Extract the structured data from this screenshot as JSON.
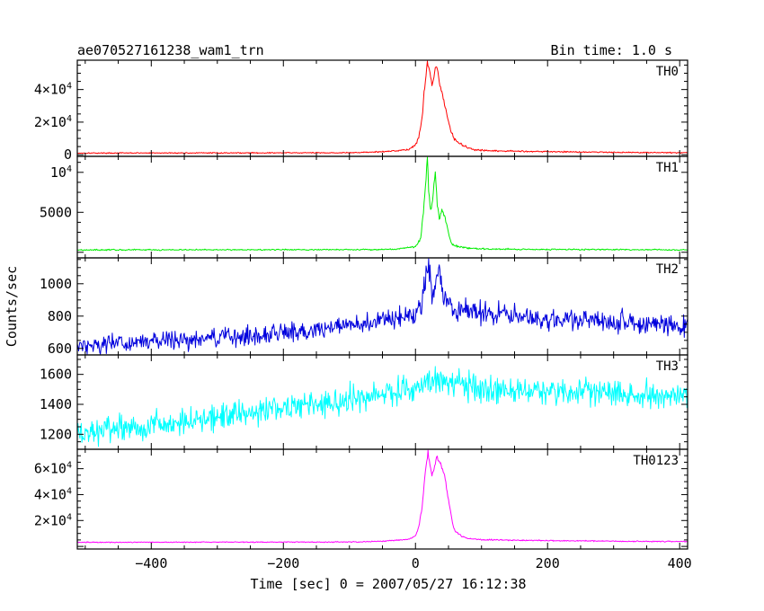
{
  "header": {
    "title": "ae070527161238_wam1_trn",
    "bin_time": "Bin time: 1.0 s"
  },
  "axes": {
    "xlabel": "Time [sec] 0 = 2007/05/27 16:12:38",
    "ylabel": "Counts/sec"
  },
  "chart_data": {
    "type": "line",
    "title": "ae070527161238_wam1_trn",
    "subtitle": "Bin time: 1.0 s",
    "xlabel": "Time [sec] 0 = 2007/05/27 16:12:38",
    "ylabel": "Counts/sec",
    "xlim": [
      -512,
      412
    ],
    "x_ticks": [
      -400,
      -200,
      0,
      200,
      400
    ],
    "x_tick_labels": [
      "−400",
      "−200",
      "0",
      "200",
      "400"
    ],
    "grid": false,
    "legend": "none",
    "panels": [
      {
        "label": "TH0",
        "color": "#ff0000",
        "ylim": [
          -1000,
          58000
        ],
        "yticks": [
          0,
          20000,
          40000
        ],
        "ytick_labels": [
          "0",
          "2×10^4",
          "4×10^4"
        ],
        "baseline": 1000,
        "noise": 150,
        "x": [
          -512,
          -100,
          -50,
          -10,
          0,
          5,
          10,
          12,
          15,
          18,
          22,
          25,
          28,
          30,
          33,
          36,
          40,
          45,
          50,
          55,
          60,
          70,
          80,
          90,
          100,
          120,
          150,
          200,
          300,
          412
        ],
        "values": [
          1000,
          1200,
          1800,
          3200,
          6000,
          11000,
          22000,
          33000,
          46000,
          58000,
          50000,
          43000,
          47000,
          54000,
          53000,
          45000,
          38000,
          29000,
          20000,
          13000,
          9000,
          6000,
          4200,
          3000,
          2600,
          2300,
          2200,
          1900,
          1500,
          1200
        ]
      },
      {
        "label": "TH1",
        "color": "#00ee00",
        "ylim": [
          -700,
          12000
        ],
        "yticks": [
          5000,
          10000
        ],
        "ytick_labels": [
          "5000",
          "10^4"
        ],
        "baseline": 300,
        "noise": 40,
        "x": [
          -512,
          -100,
          -30,
          0,
          8,
          12,
          16,
          18,
          20,
          23,
          26,
          30,
          33,
          36,
          40,
          45,
          50,
          55,
          65,
          80,
          100,
          150,
          412
        ],
        "values": [
          300,
          330,
          380,
          700,
          1800,
          5000,
          9000,
          12000,
          8000,
          5000,
          6500,
          10000,
          6000,
          4200,
          5500,
          4300,
          2300,
          1000,
          700,
          500,
          430,
          380,
          300
        ]
      },
      {
        "label": "TH2",
        "color": "#0000dd",
        "ylim": [
          560,
          1160
        ],
        "yticks": [
          600,
          800,
          1000
        ],
        "ytick_labels": [
          "600",
          "800",
          "1000"
        ],
        "baseline": 620,
        "noise": 28,
        "x": [
          -512,
          -400,
          -300,
          -200,
          -100,
          -50,
          0,
          10,
          15,
          20,
          25,
          30,
          35,
          40,
          50,
          60,
          80,
          100,
          150,
          200,
          300,
          400,
          412
        ],
        "values": [
          620,
          640,
          665,
          700,
          740,
          770,
          810,
          880,
          1000,
          1160,
          900,
          1000,
          1100,
          960,
          880,
          850,
          840,
          820,
          800,
          780,
          770,
          740,
          740
        ]
      },
      {
        "label": "TH3",
        "color": "#00ffff",
        "ylim": [
          1100,
          1730
        ],
        "yticks": [
          1200,
          1400,
          1600
        ],
        "ytick_labels": [
          "1200",
          "1400",
          "1600"
        ],
        "baseline": 1200,
        "noise": 42,
        "x": [
          -512,
          -400,
          -300,
          -200,
          -100,
          -50,
          0,
          20,
          40,
          60,
          80,
          100,
          150,
          200,
          250,
          300,
          350,
          400,
          412
        ],
        "values": [
          1200,
          1260,
          1320,
          1380,
          1430,
          1460,
          1520,
          1570,
          1560,
          1540,
          1520,
          1505,
          1500,
          1490,
          1480,
          1475,
          1470,
          1460,
          1450
        ]
      },
      {
        "label": "TH0123",
        "color": "#ff00ff",
        "ylim": [
          -2000,
          75000
        ],
        "yticks": [
          20000,
          40000,
          60000
        ],
        "ytick_labels": [
          "2×10^4",
          "4×10^4",
          "6×10^4"
        ],
        "baseline": 3200,
        "noise": 180,
        "x": [
          -512,
          -100,
          -50,
          -10,
          0,
          5,
          10,
          13,
          16,
          19,
          22,
          25,
          28,
          32,
          35,
          38,
          42,
          45,
          48,
          52,
          56,
          60,
          70,
          80,
          100,
          150,
          200,
          300,
          412
        ],
        "values": [
          3200,
          3400,
          4000,
          5500,
          8000,
          15000,
          30000,
          48000,
          62000,
          73000,
          62000,
          55000,
          60000,
          69000,
          66000,
          64000,
          58000,
          52000,
          42000,
          30000,
          18000,
          12000,
          8000,
          6000,
          5200,
          4800,
          4500,
          4000,
          3800
        ]
      }
    ]
  }
}
